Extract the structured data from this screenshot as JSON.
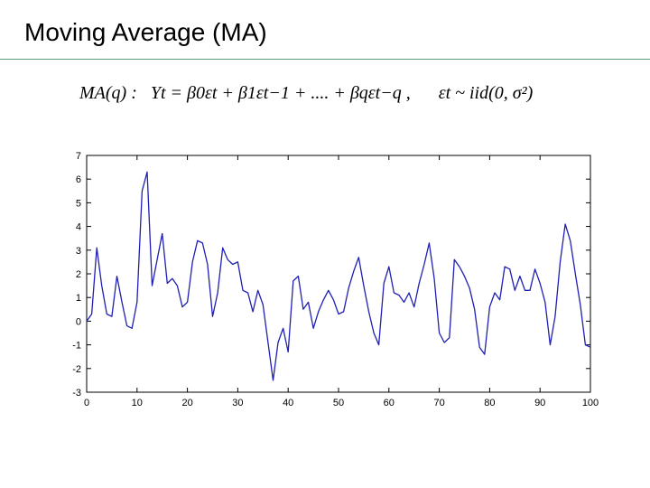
{
  "slide": {
    "title": "Moving Average (MA)",
    "formula_label": "MA(q) :",
    "formula_model": "Yt = β0εt + β1εt−1 + .... + βqεt−q ,",
    "formula_noise": "εt ~ iid(0, σ²)"
  },
  "chart_data": {
    "type": "line",
    "title": "",
    "xlabel": "",
    "ylabel": "",
    "xlim": [
      0,
      100
    ],
    "ylim": [
      -3,
      7
    ],
    "xticks": [
      0,
      10,
      20,
      30,
      40,
      50,
      60,
      70,
      80,
      90,
      100
    ],
    "yticks": [
      -3,
      -2,
      -1,
      0,
      1,
      2,
      3,
      4,
      5,
      6,
      7
    ],
    "xtick_labels": [
      "0",
      "10",
      "20",
      "30",
      "40",
      "50",
      "60",
      "70",
      "80",
      "90",
      "100"
    ],
    "ytick_labels": [
      "-3",
      "-2",
      "-1",
      "0",
      "1",
      "2",
      "3",
      "4",
      "5",
      "6",
      "7"
    ],
    "grid": false,
    "series": [
      {
        "color": "#1f1fb4",
        "x": [
          0,
          1,
          2,
          3,
          4,
          5,
          6,
          7,
          8,
          9,
          10,
          11,
          12,
          13,
          14,
          15,
          16,
          17,
          18,
          19,
          20,
          21,
          22,
          23,
          24,
          25,
          26,
          27,
          28,
          29,
          30,
          31,
          32,
          33,
          34,
          35,
          36,
          37,
          38,
          39,
          40,
          41,
          42,
          43,
          44,
          45,
          46,
          47,
          48,
          49,
          50,
          51,
          52,
          53,
          54,
          55,
          56,
          57,
          58,
          59,
          60,
          61,
          62,
          63,
          64,
          65,
          66,
          67,
          68,
          69,
          70,
          71,
          72,
          73,
          74,
          75,
          76,
          77,
          78,
          79,
          80,
          81,
          82,
          83,
          84,
          85,
          86,
          87,
          88,
          89,
          90,
          91,
          92,
          93,
          94,
          95,
          96,
          97,
          98,
          99,
          100
        ],
        "values": [
          0.0,
          0.3,
          3.1,
          1.5,
          0.3,
          0.2,
          1.9,
          0.8,
          -0.2,
          -0.3,
          0.8,
          5.5,
          6.3,
          1.5,
          2.6,
          3.7,
          1.6,
          1.8,
          1.5,
          0.6,
          0.8,
          2.5,
          3.4,
          3.3,
          2.4,
          0.2,
          1.2,
          3.1,
          2.6,
          2.4,
          2.5,
          1.3,
          1.2,
          0.4,
          1.3,
          0.7,
          -0.9,
          -2.5,
          -0.9,
          -0.3,
          -1.3,
          1.7,
          1.9,
          0.5,
          0.8,
          -0.3,
          0.4,
          0.9,
          1.3,
          0.9,
          0.3,
          0.4,
          1.4,
          2.1,
          2.7,
          1.5,
          0.4,
          -0.5,
          -1.0,
          1.6,
          2.3,
          1.2,
          1.1,
          0.8,
          1.2,
          0.6,
          1.6,
          2.4,
          3.3,
          1.8,
          -0.5,
          -0.9,
          -0.7,
          2.6,
          2.3,
          1.9,
          1.4,
          0.5,
          -1.1,
          -1.4,
          0.6,
          1.2,
          0.9,
          2.3,
          2.2,
          1.3,
          1.9,
          1.3,
          1.3,
          2.2,
          1.6,
          0.8,
          -1.0,
          0.2,
          2.5,
          4.1,
          3.4,
          2.0,
          0.7,
          -1.0,
          -1.1
        ]
      }
    ]
  }
}
